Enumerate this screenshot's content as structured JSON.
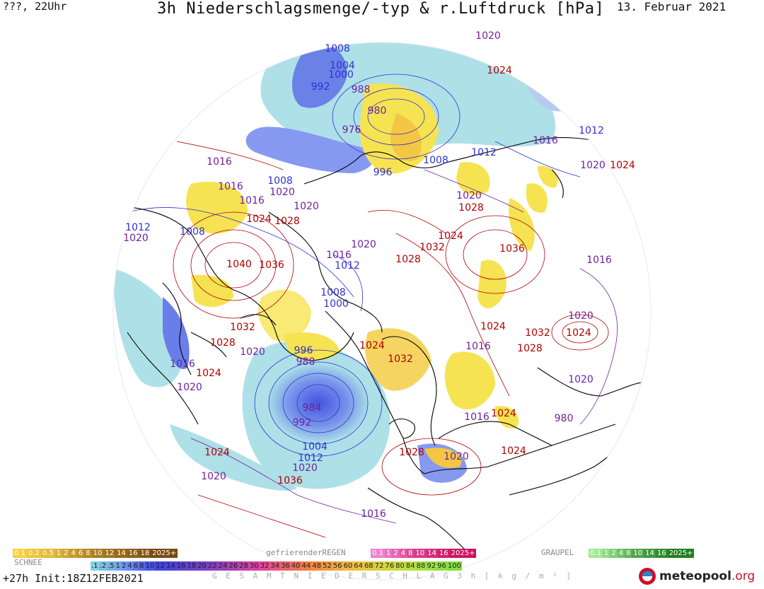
{
  "header": {
    "left": "???, 22Uhr",
    "title": "3h Niederschlagsmenge/-typ & r.Luftdruck [hPa]",
    "date": "13. Februar 2021"
  },
  "footer": {
    "run": "+27h  Init:18Z12FEB2021",
    "brand": "meteopool",
    "brand_tld": ".org"
  },
  "legend": {
    "snow_title": "SCHNEE",
    "freezing_rain_title": "gefrierenderREGEN",
    "graupel_title": "GRAUPEL",
    "total_caption": "G E S A M T N I E D E R S C H L A G   3 h   [ k g / m ² ]",
    "snow_labels": [
      "0.1",
      "0.2",
      "0.5",
      "1",
      "2",
      "4",
      "6",
      "8",
      "10",
      "12",
      "14",
      "16",
      "18",
      "2025+"
    ],
    "freezing_rain_labels": [
      "0.1",
      "1",
      "2",
      "4",
      "8",
      "10",
      "14",
      "16",
      "2025+"
    ],
    "graupel_labels": [
      "0.1",
      "1",
      "2",
      "4",
      "8",
      "10",
      "14",
      "16",
      "2025+"
    ],
    "total_labels": [
      ".1",
      ".2",
      ".5",
      "1",
      "2",
      "4",
      "6",
      "8",
      "10",
      "12",
      "14",
      "16",
      "18",
      "20",
      "22",
      "24",
      "26",
      "28",
      "30",
      "32",
      "34",
      "36",
      "40",
      "44",
      "48",
      "52",
      "56",
      "60",
      "64",
      "68",
      "72",
      "76",
      "80",
      "84",
      "88",
      "92",
      "96",
      "100"
    ],
    "colors": {
      "snow": "#f0b020",
      "freezing_rain": "#e040a0",
      "graupel": "#40c040",
      "total_low": "#80d0e0",
      "total_high": "#4050f0"
    }
  },
  "isobars": {
    "high_color": "#b00000",
    "low_color": "#3030d0",
    "mid_color": "#7020a0",
    "labels": [
      {
        "text": "1020",
        "kind": "mid"
      },
      {
        "text": "1024",
        "kind": "high"
      },
      {
        "text": "1008",
        "kind": "low"
      },
      {
        "text": "1004",
        "kind": "low"
      },
      {
        "text": "1000",
        "kind": "low"
      },
      {
        "text": "992",
        "kind": "low"
      },
      {
        "text": "988",
        "kind": "mid"
      },
      {
        "text": "980",
        "kind": "mid"
      },
      {
        "text": "976",
        "kind": "mid"
      },
      {
        "text": "996",
        "kind": "low"
      },
      {
        "text": "1012",
        "kind": "low"
      },
      {
        "text": "1016",
        "kind": "mid"
      },
      {
        "text": "1020",
        "kind": "mid"
      },
      {
        "text": "1024",
        "kind": "high"
      },
      {
        "text": "1008",
        "kind": "low"
      },
      {
        "text": "1012",
        "kind": "low"
      },
      {
        "text": "1016",
        "kind": "mid"
      },
      {
        "text": "1016",
        "kind": "mid"
      },
      {
        "text": "1016",
        "kind": "mid"
      },
      {
        "text": "1020",
        "kind": "mid"
      },
      {
        "text": "1024",
        "kind": "high"
      },
      {
        "text": "1028",
        "kind": "high"
      },
      {
        "text": "1008",
        "kind": "low"
      },
      {
        "text": "1020",
        "kind": "mid"
      },
      {
        "text": "1012",
        "kind": "low"
      },
      {
        "text": "1020",
        "kind": "mid"
      },
      {
        "text": "1008",
        "kind": "low"
      },
      {
        "text": "1020",
        "kind": "mid"
      },
      {
        "text": "1028",
        "kind": "high"
      },
      {
        "text": "1024",
        "kind": "high"
      },
      {
        "text": "1032",
        "kind": "high"
      },
      {
        "text": "1036",
        "kind": "high"
      },
      {
        "text": "1016",
        "kind": "mid"
      },
      {
        "text": "1040",
        "kind": "high"
      },
      {
        "text": "1036",
        "kind": "high"
      },
      {
        "text": "1016",
        "kind": "mid"
      },
      {
        "text": "1012",
        "kind": "low"
      },
      {
        "text": "1020",
        "kind": "mid"
      },
      {
        "text": "1028",
        "kind": "high"
      },
      {
        "text": "1008",
        "kind": "low"
      },
      {
        "text": "1000",
        "kind": "low"
      },
      {
        "text": "1032",
        "kind": "high"
      },
      {
        "text": "1028",
        "kind": "high"
      },
      {
        "text": "1020",
        "kind": "mid"
      },
      {
        "text": "996",
        "kind": "low"
      },
      {
        "text": "988",
        "kind": "mid"
      },
      {
        "text": "1024",
        "kind": "high"
      },
      {
        "text": "1032",
        "kind": "high"
      },
      {
        "text": "1016",
        "kind": "mid"
      },
      {
        "text": "1024",
        "kind": "high"
      },
      {
        "text": "1032",
        "kind": "high"
      },
      {
        "text": "1028",
        "kind": "high"
      },
      {
        "text": "1024",
        "kind": "high"
      },
      {
        "text": "1020",
        "kind": "mid"
      },
      {
        "text": "1020",
        "kind": "mid"
      },
      {
        "text": "1016",
        "kind": "mid"
      },
      {
        "text": "1024",
        "kind": "high"
      },
      {
        "text": "1020",
        "kind": "mid"
      },
      {
        "text": "1016",
        "kind": "mid"
      },
      {
        "text": "980",
        "kind": "mid"
      },
      {
        "text": "984",
        "kind": "mid"
      },
      {
        "text": "992",
        "kind": "mid"
      },
      {
        "text": "1004",
        "kind": "low"
      },
      {
        "text": "1012",
        "kind": "low"
      },
      {
        "text": "1020",
        "kind": "mid"
      },
      {
        "text": "1036",
        "kind": "high"
      },
      {
        "text": "1028",
        "kind": "high"
      },
      {
        "text": "1020",
        "kind": "mid"
      },
      {
        "text": "1024",
        "kind": "high"
      },
      {
        "text": "1024",
        "kind": "high"
      },
      {
        "text": "1024",
        "kind": "high"
      },
      {
        "text": "1020",
        "kind": "mid"
      },
      {
        "text": "1016",
        "kind": "mid"
      }
    ]
  }
}
